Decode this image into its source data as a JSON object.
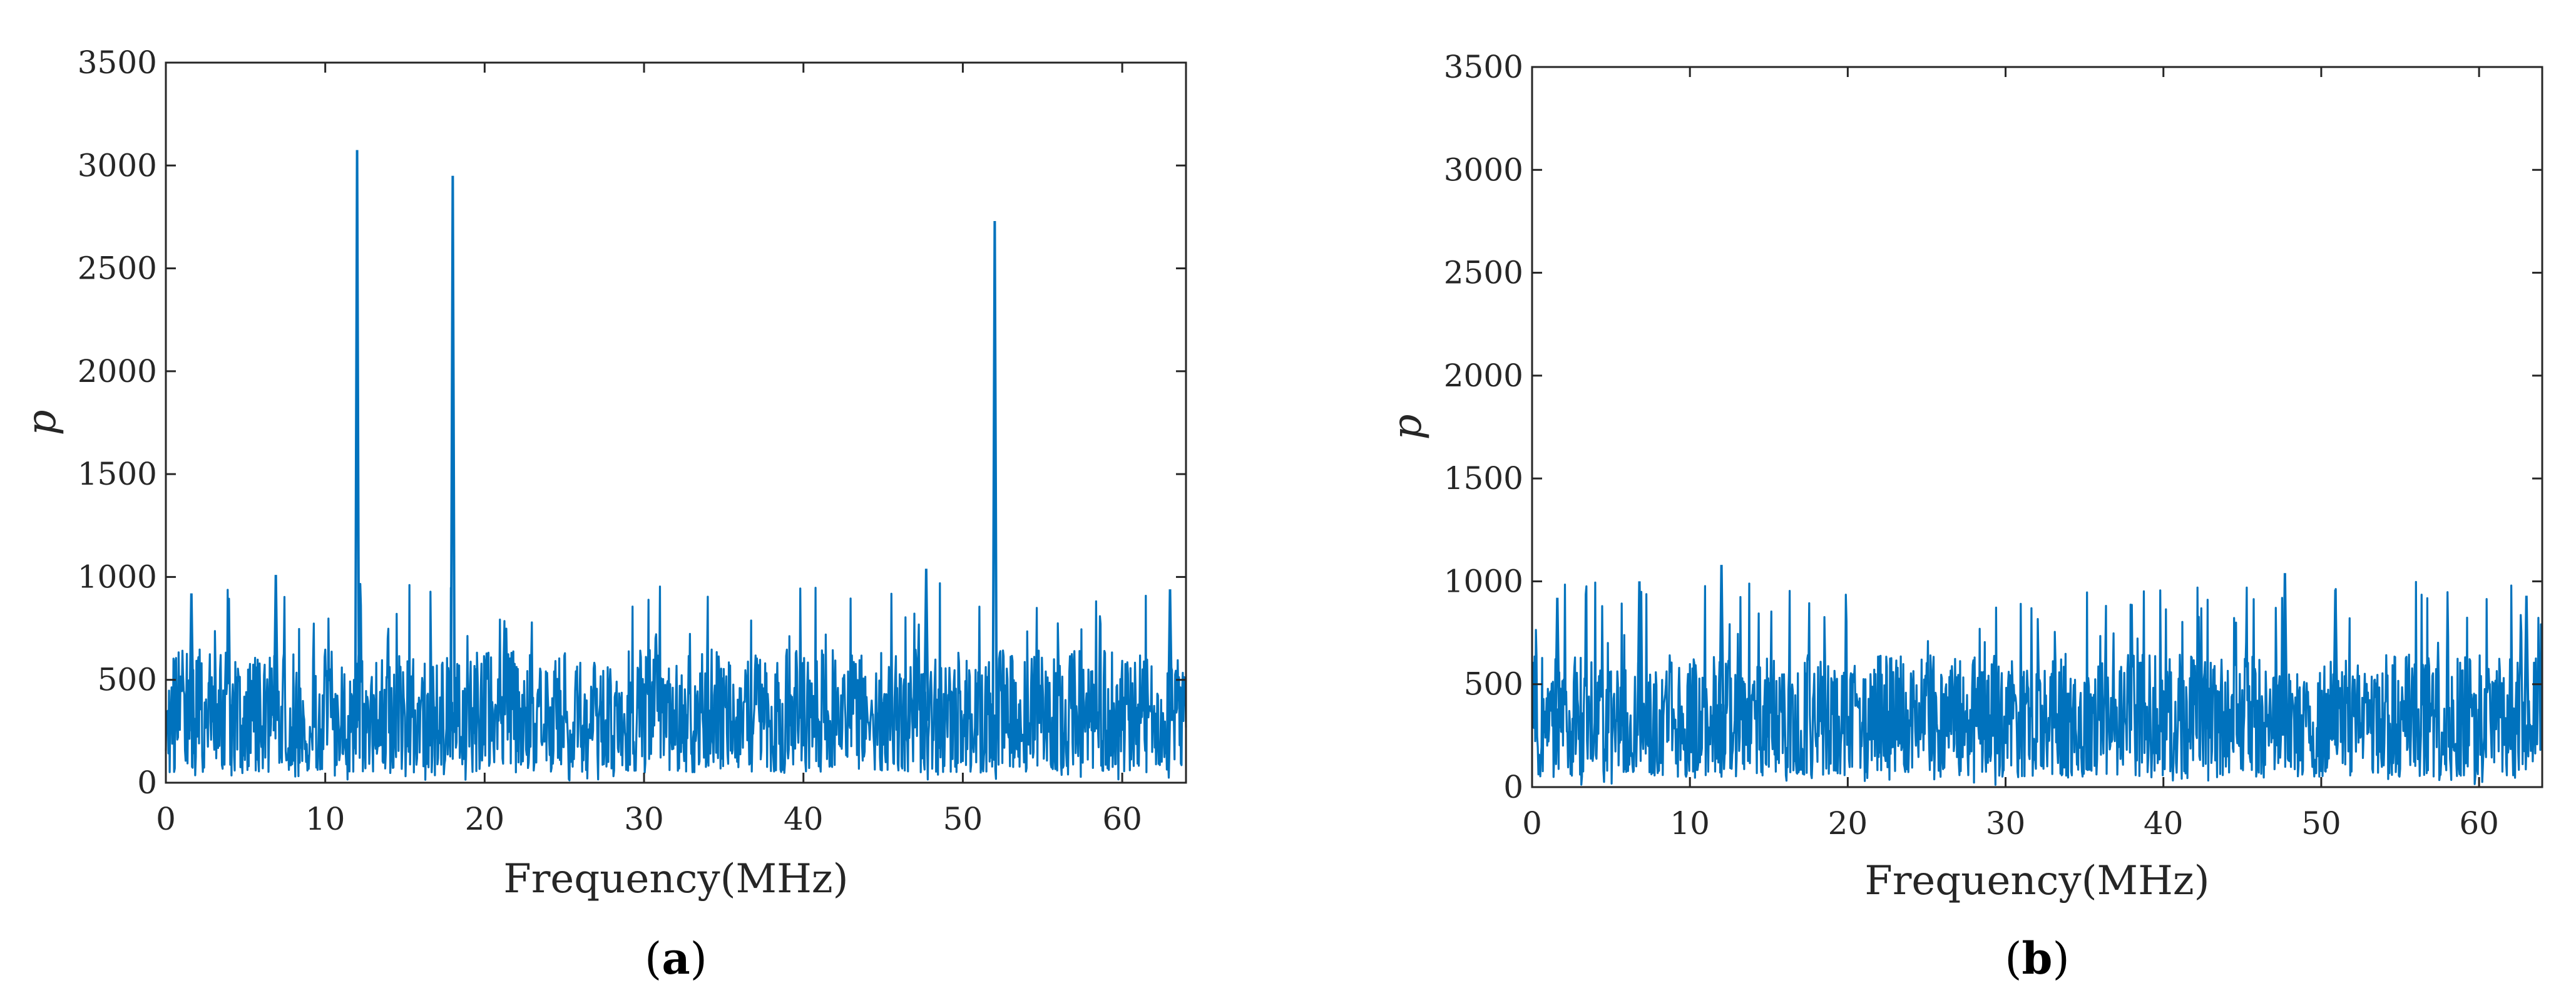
{
  "colors": {
    "series": "#0072BD",
    "axis": "#262626"
  },
  "chart_data": [
    {
      "type": "line",
      "panel_label": "a",
      "xlabel": "Frequency(MHz)",
      "ylabel": "p",
      "xlim": [
        0,
        64
      ],
      "ylim": [
        0,
        3500
      ],
      "xticks": [
        0,
        10,
        20,
        30,
        40,
        50,
        60
      ],
      "yticks": [
        0,
        500,
        1000,
        1500,
        2000,
        2500,
        3000,
        3500
      ],
      "grid": false,
      "noise_floor": {
        "typical_range": [
          50,
          700
        ],
        "occasional_max": 1050
      },
      "peaks": [
        {
          "x": 12,
          "y": 3075
        },
        {
          "x": 18,
          "y": 2950
        },
        {
          "x": 52,
          "y": 2730
        },
        {
          "x": 6.9,
          "y": 1010
        },
        {
          "x": 47.7,
          "y": 1040
        },
        {
          "x": 1.6,
          "y": 920
        },
        {
          "x": 63.0,
          "y": 940
        }
      ]
    },
    {
      "type": "line",
      "panel_label": "b",
      "xlabel": "Frequency(MHz)",
      "ylabel": "p",
      "xlim": [
        0,
        64
      ],
      "ylim": [
        0,
        3500
      ],
      "xticks": [
        0,
        10,
        20,
        30,
        40,
        50,
        60
      ],
      "yticks": [
        0,
        500,
        1000,
        1500,
        2000,
        2500,
        3000,
        3500
      ],
      "grid": false,
      "noise_floor": {
        "typical_range": [
          50,
          700
        ],
        "occasional_max": 1080
      },
      "peaks": [
        {
          "x": 12.0,
          "y": 1080
        },
        {
          "x": 6.8,
          "y": 1000
        },
        {
          "x": 47.7,
          "y": 1040
        },
        {
          "x": 1.6,
          "y": 920
        },
        {
          "x": 50.9,
          "y": 960
        },
        {
          "x": 63.0,
          "y": 930
        }
      ]
    }
  ]
}
